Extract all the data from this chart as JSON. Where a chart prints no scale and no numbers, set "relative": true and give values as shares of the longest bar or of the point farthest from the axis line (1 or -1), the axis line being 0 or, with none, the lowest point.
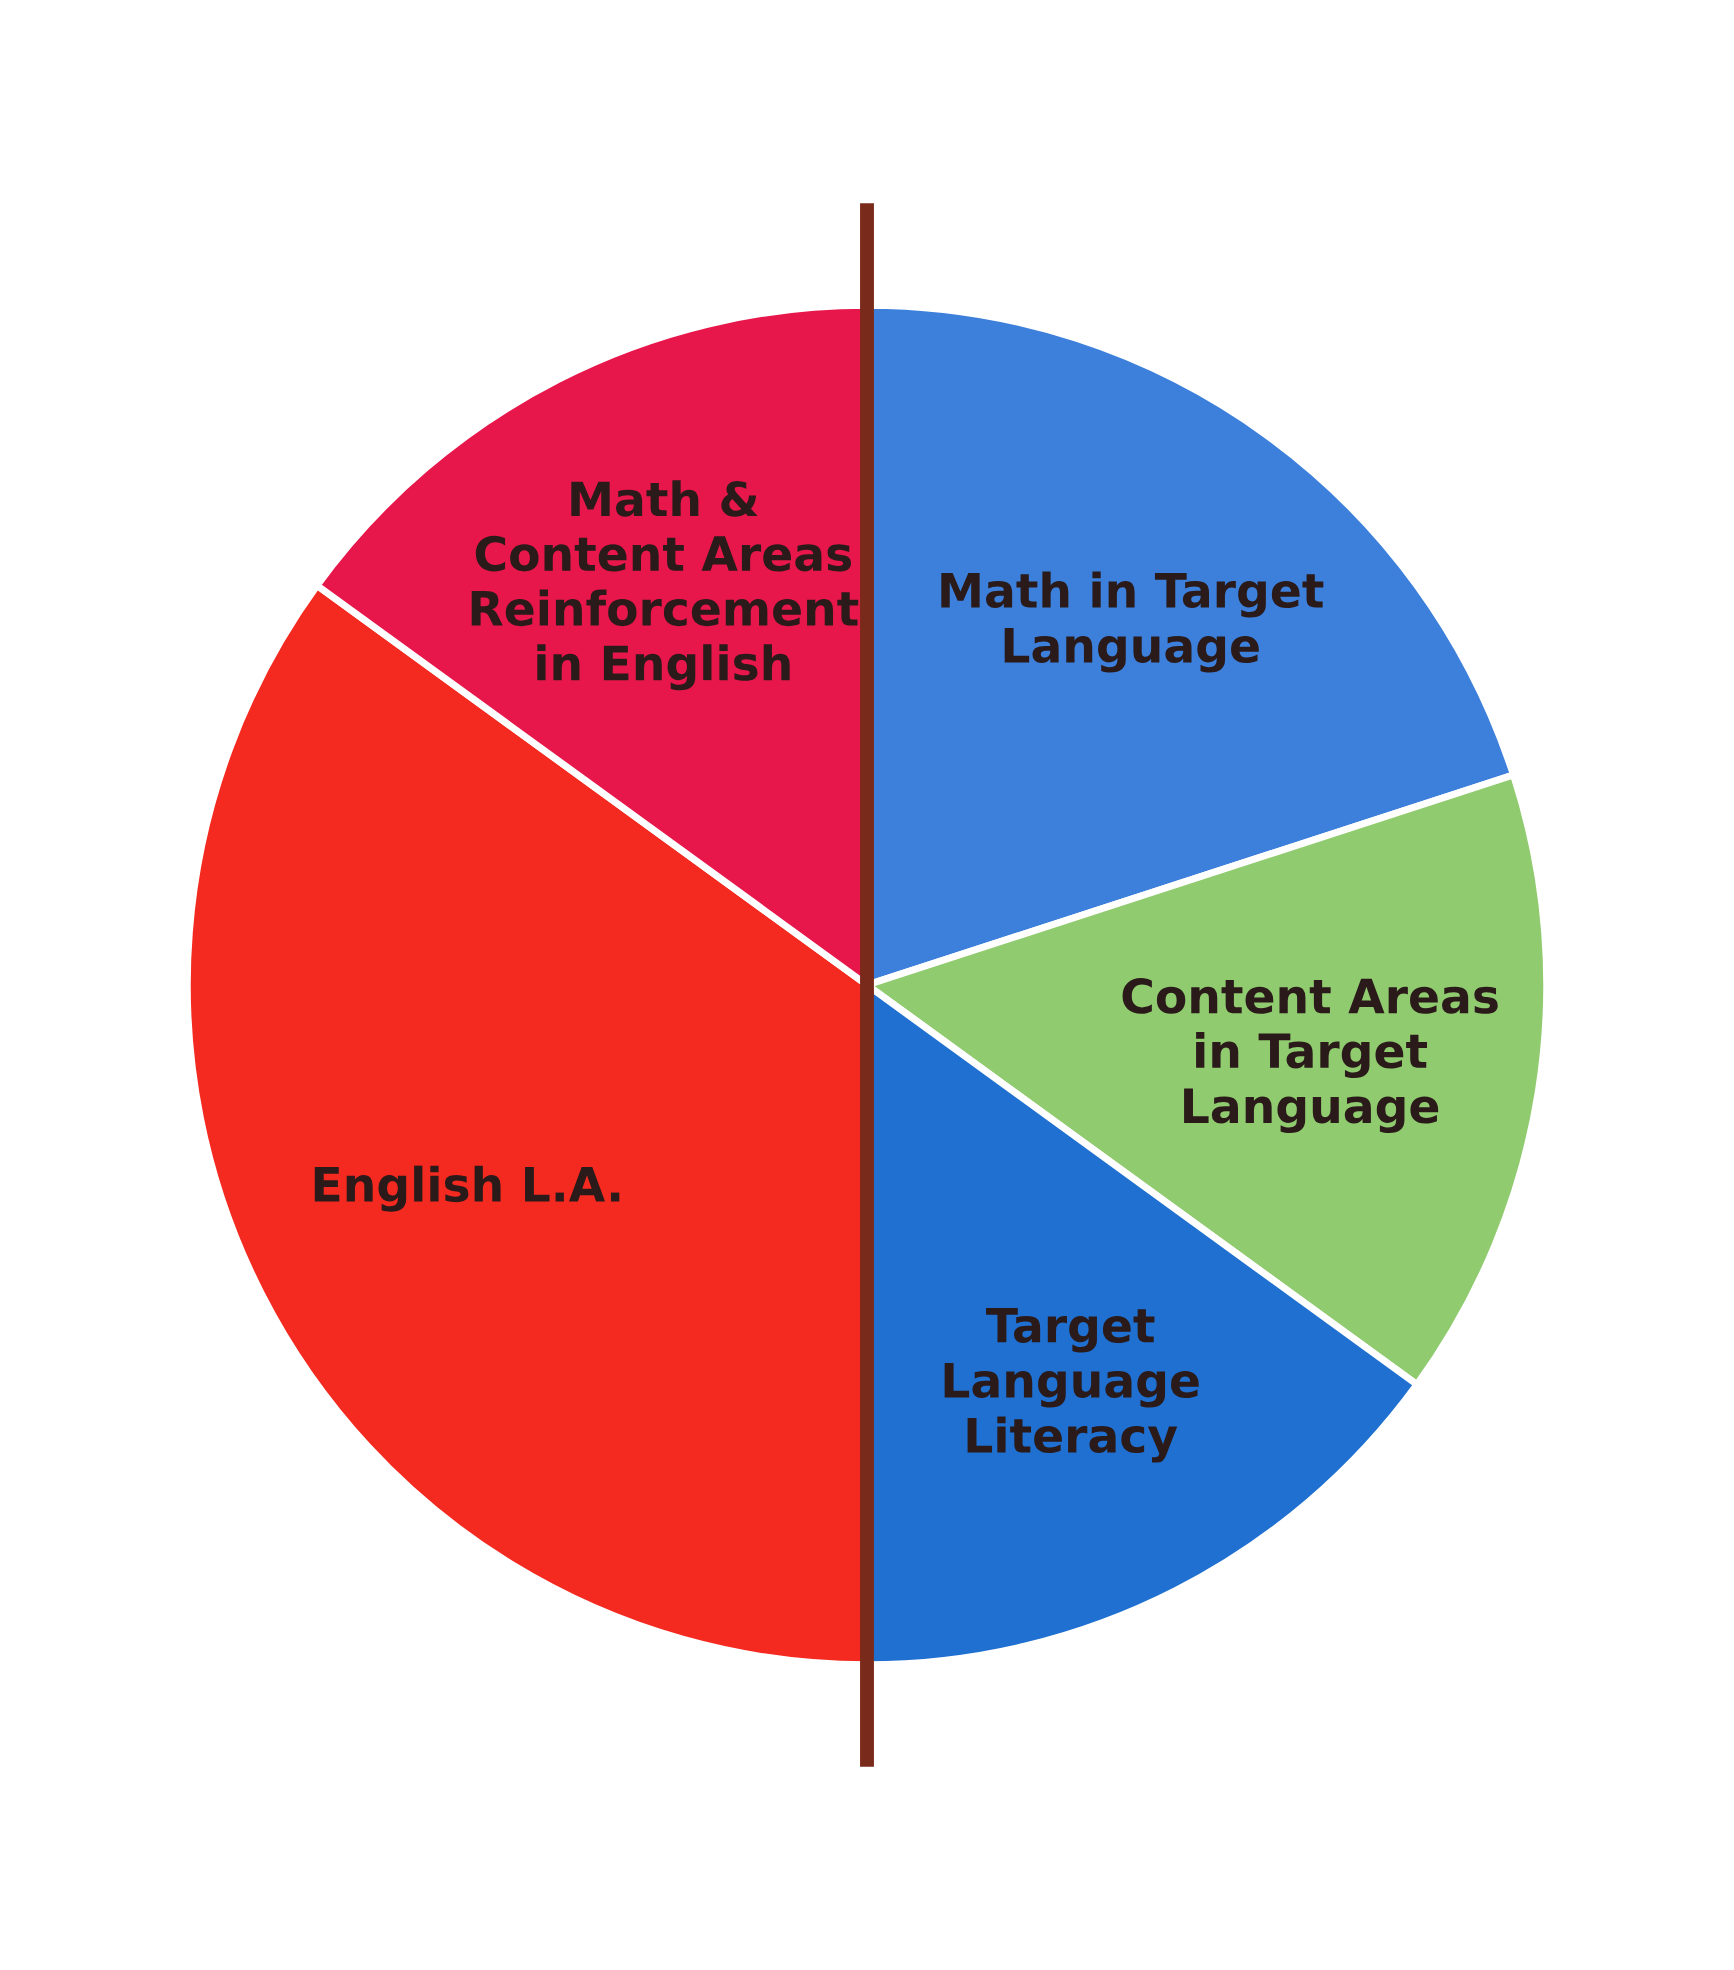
{
  "chart_data": {
    "type": "pie",
    "relative": true,
    "categories": [
      "Math in Target\nLanguage",
      "Content Areas\nin Target\nLanguage",
      "Target\nLanguage\nLiteracy",
      "English L.A.",
      "Math &\nContent Areas\nReinforcement\nin English"
    ],
    "values": [
      20,
      15,
      15,
      35,
      15
    ],
    "colors": [
      "#3d80dc",
      "#90cb6f",
      "#1f70d0",
      "#f42a20",
      "#e8174b"
    ],
    "legend": false
  }
}
